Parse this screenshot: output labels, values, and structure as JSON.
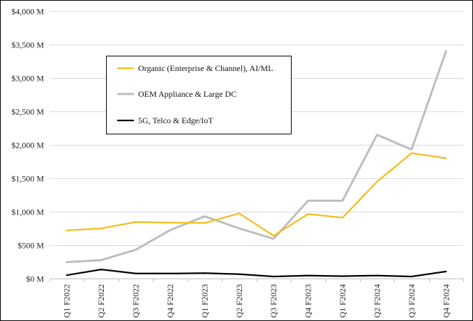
{
  "chart_data": {
    "type": "line",
    "title": "",
    "xlabel": "",
    "ylabel": "",
    "categories": [
      "Q1 F2022",
      "Q2 F2022",
      "Q3 F2022",
      "Q4 F2022",
      "Q1 F2023",
      "Q2 F2023",
      "Q3 F2023",
      "Q4 F2023",
      "Q1 F2024",
      "Q2 F2024",
      "Q3 F2024",
      "Q4 F2024"
    ],
    "ylim": [
      0,
      4000
    ],
    "yticks": [
      0,
      500,
      1000,
      1500,
      2000,
      2500,
      3000,
      3500,
      4000
    ],
    "ytick_labels": [
      "$0 M",
      "$500 M",
      "$1,000 M",
      "$1,500 M",
      "$2,000 M",
      "$2,500 M",
      "$3,000 M",
      "$3,500 M",
      "$4,000 M"
    ],
    "grid": true,
    "legend_position": "upper-left inside plot",
    "series": [
      {
        "name": "Organic (Enterprise & Channel), AI/ML",
        "color": "#F2BE1A",
        "values": [
          720,
          750,
          845,
          835,
          830,
          975,
          640,
          965,
          910,
          1450,
          1875,
          1800
        ]
      },
      {
        "name": "OEM Appliance & Large DC",
        "color": "#BDBDBD",
        "values": [
          245,
          275,
          430,
          725,
          930,
          750,
          595,
          1165,
          1165,
          2150,
          1930,
          3400
        ]
      },
      {
        "name": "5G, Telco & Edge/IoT",
        "color": "#000000",
        "values": [
          50,
          135,
          75,
          75,
          80,
          65,
          30,
          45,
          35,
          45,
          30,
          105
        ]
      }
    ]
  }
}
